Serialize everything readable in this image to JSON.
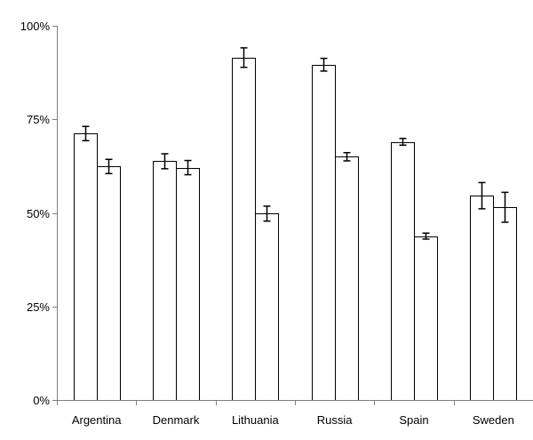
{
  "chart_data": {
    "type": "bar",
    "title": "",
    "xlabel": "",
    "ylabel": "",
    "ylim": [
      0,
      100
    ],
    "y_unit": "%",
    "yticks": [
      0,
      25,
      50,
      75,
      100
    ],
    "ytick_labels": [
      "0%",
      "25%",
      "50%",
      "75%",
      "100%"
    ],
    "grid": false,
    "legend": "none",
    "categories": [
      "Argentina",
      "Denmark",
      "Lithuania",
      "Russia",
      "Spain",
      "Sweden"
    ],
    "series": [
      {
        "values": [
          71.2,
          63.8,
          91.5,
          89.6,
          69.0,
          54.6
        ],
        "errors": [
          1.9,
          2.0,
          2.6,
          1.7,
          0.9,
          3.5
        ],
        "color": "#ffffff"
      },
      {
        "values": [
          62.4,
          62.1,
          49.8,
          65.0,
          43.8,
          51.5
        ],
        "errors": [
          1.9,
          1.9,
          2.0,
          1.1,
          0.8,
          4.0
        ],
        "color": "#ffffff"
      }
    ]
  }
}
